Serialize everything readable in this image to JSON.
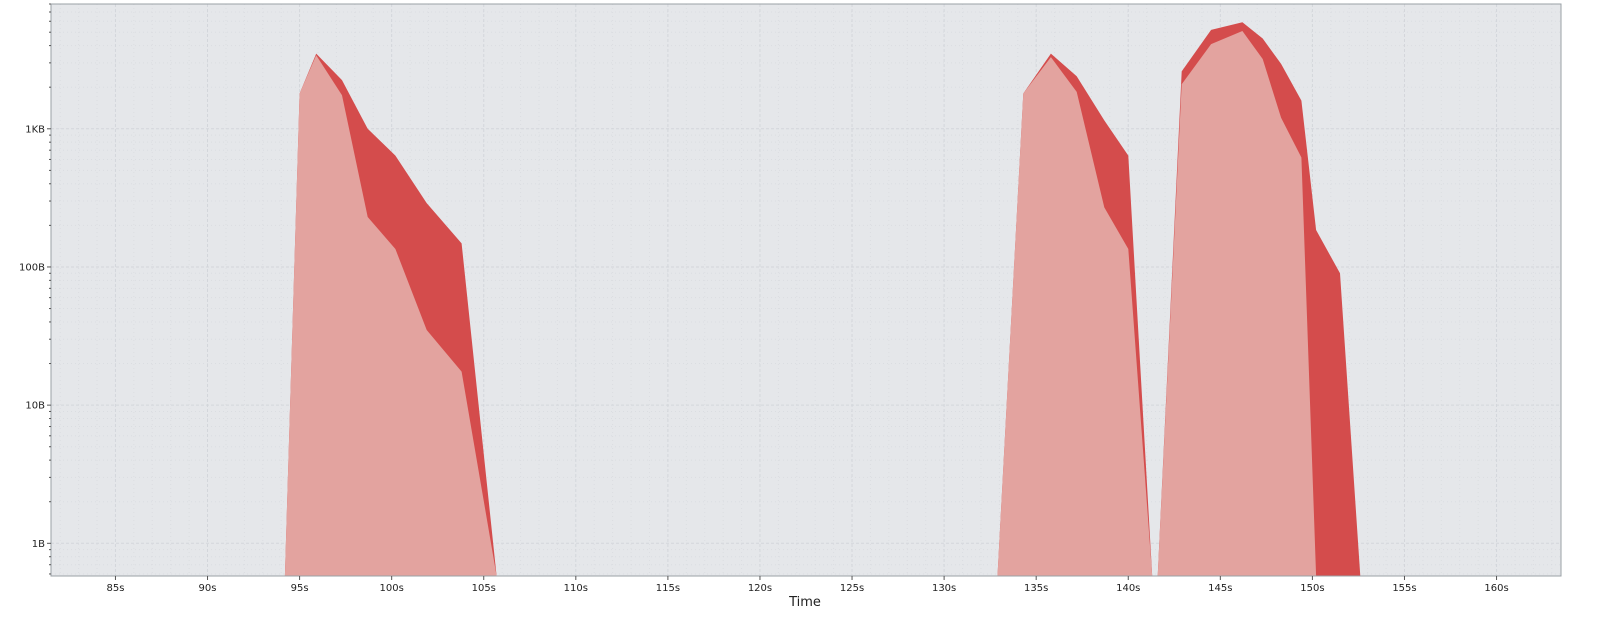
{
  "chart_data": {
    "type": "area",
    "xlabel": "Time",
    "ylabel": "",
    "xlim": [
      81.5,
      163.5
    ],
    "ylim": [
      0.58,
      8000
    ],
    "y_scale": "log",
    "grid": true,
    "x_ticks": [
      85,
      90,
      95,
      100,
      105,
      110,
      115,
      120,
      125,
      130,
      135,
      140,
      145,
      150,
      155,
      160
    ],
    "x_tick_labels": [
      "85s",
      "90s",
      "95s",
      "100s",
      "105s",
      "110s",
      "115s",
      "120s",
      "125s",
      "130s",
      "135s",
      "140s",
      "145s",
      "150s",
      "155s",
      "160s"
    ],
    "y_ticks": [
      1,
      10,
      100,
      1000
    ],
    "y_tick_labels": [
      "1B",
      "10B",
      "100B",
      "1KB"
    ],
    "colors": {
      "plot_background": "#e5e7ea",
      "grid": "#d2d5da",
      "series_light": "#e3a39f",
      "series_dark": "#d44c4c"
    },
    "series": [
      {
        "values": [
          [
            94.2,
            0.58
          ],
          [
            95.0,
            1800
          ],
          [
            95.9,
            3400
          ],
          [
            97.3,
            1750
          ],
          [
            98.7,
            230
          ],
          [
            100.2,
            135
          ],
          [
            101.9,
            35
          ],
          [
            103.8,
            17.5
          ],
          [
            105.7,
            0.58
          ],
          [
            132.9,
            0.58
          ],
          [
            134.3,
            1800
          ],
          [
            135.8,
            3300
          ],
          [
            137.2,
            1850
          ],
          [
            138.7,
            270
          ],
          [
            140.0,
            135
          ],
          [
            141.3,
            0.58
          ],
          [
            141.6,
            0.58
          ],
          [
            142.9,
            2100
          ],
          [
            144.5,
            4100
          ],
          [
            146.2,
            5100
          ],
          [
            147.3,
            3200
          ],
          [
            148.3,
            1200
          ],
          [
            149.4,
            620
          ],
          [
            150.2,
            0.58
          ]
        ]
      },
      {
        "values": [
          [
            94.2,
            0.58
          ],
          [
            95.0,
            1800
          ],
          [
            95.9,
            3500
          ],
          [
            97.3,
            2250
          ],
          [
            98.7,
            1000
          ],
          [
            100.2,
            640
          ],
          [
            101.9,
            290
          ],
          [
            103.8,
            148
          ],
          [
            105.7,
            0.58
          ],
          [
            132.9,
            0.58
          ],
          [
            134.3,
            1800
          ],
          [
            135.8,
            3500
          ],
          [
            137.2,
            2400
          ],
          [
            138.7,
            1150
          ],
          [
            140.0,
            640
          ],
          [
            141.3,
            0.58
          ],
          [
            141.6,
            0.58
          ],
          [
            142.9,
            2600
          ],
          [
            144.5,
            5200
          ],
          [
            146.2,
            5900
          ],
          [
            147.3,
            4500
          ],
          [
            148.3,
            2950
          ],
          [
            149.4,
            1600
          ],
          [
            150.2,
            185
          ],
          [
            151.5,
            90
          ],
          [
            152.6,
            0.58
          ]
        ]
      }
    ]
  }
}
